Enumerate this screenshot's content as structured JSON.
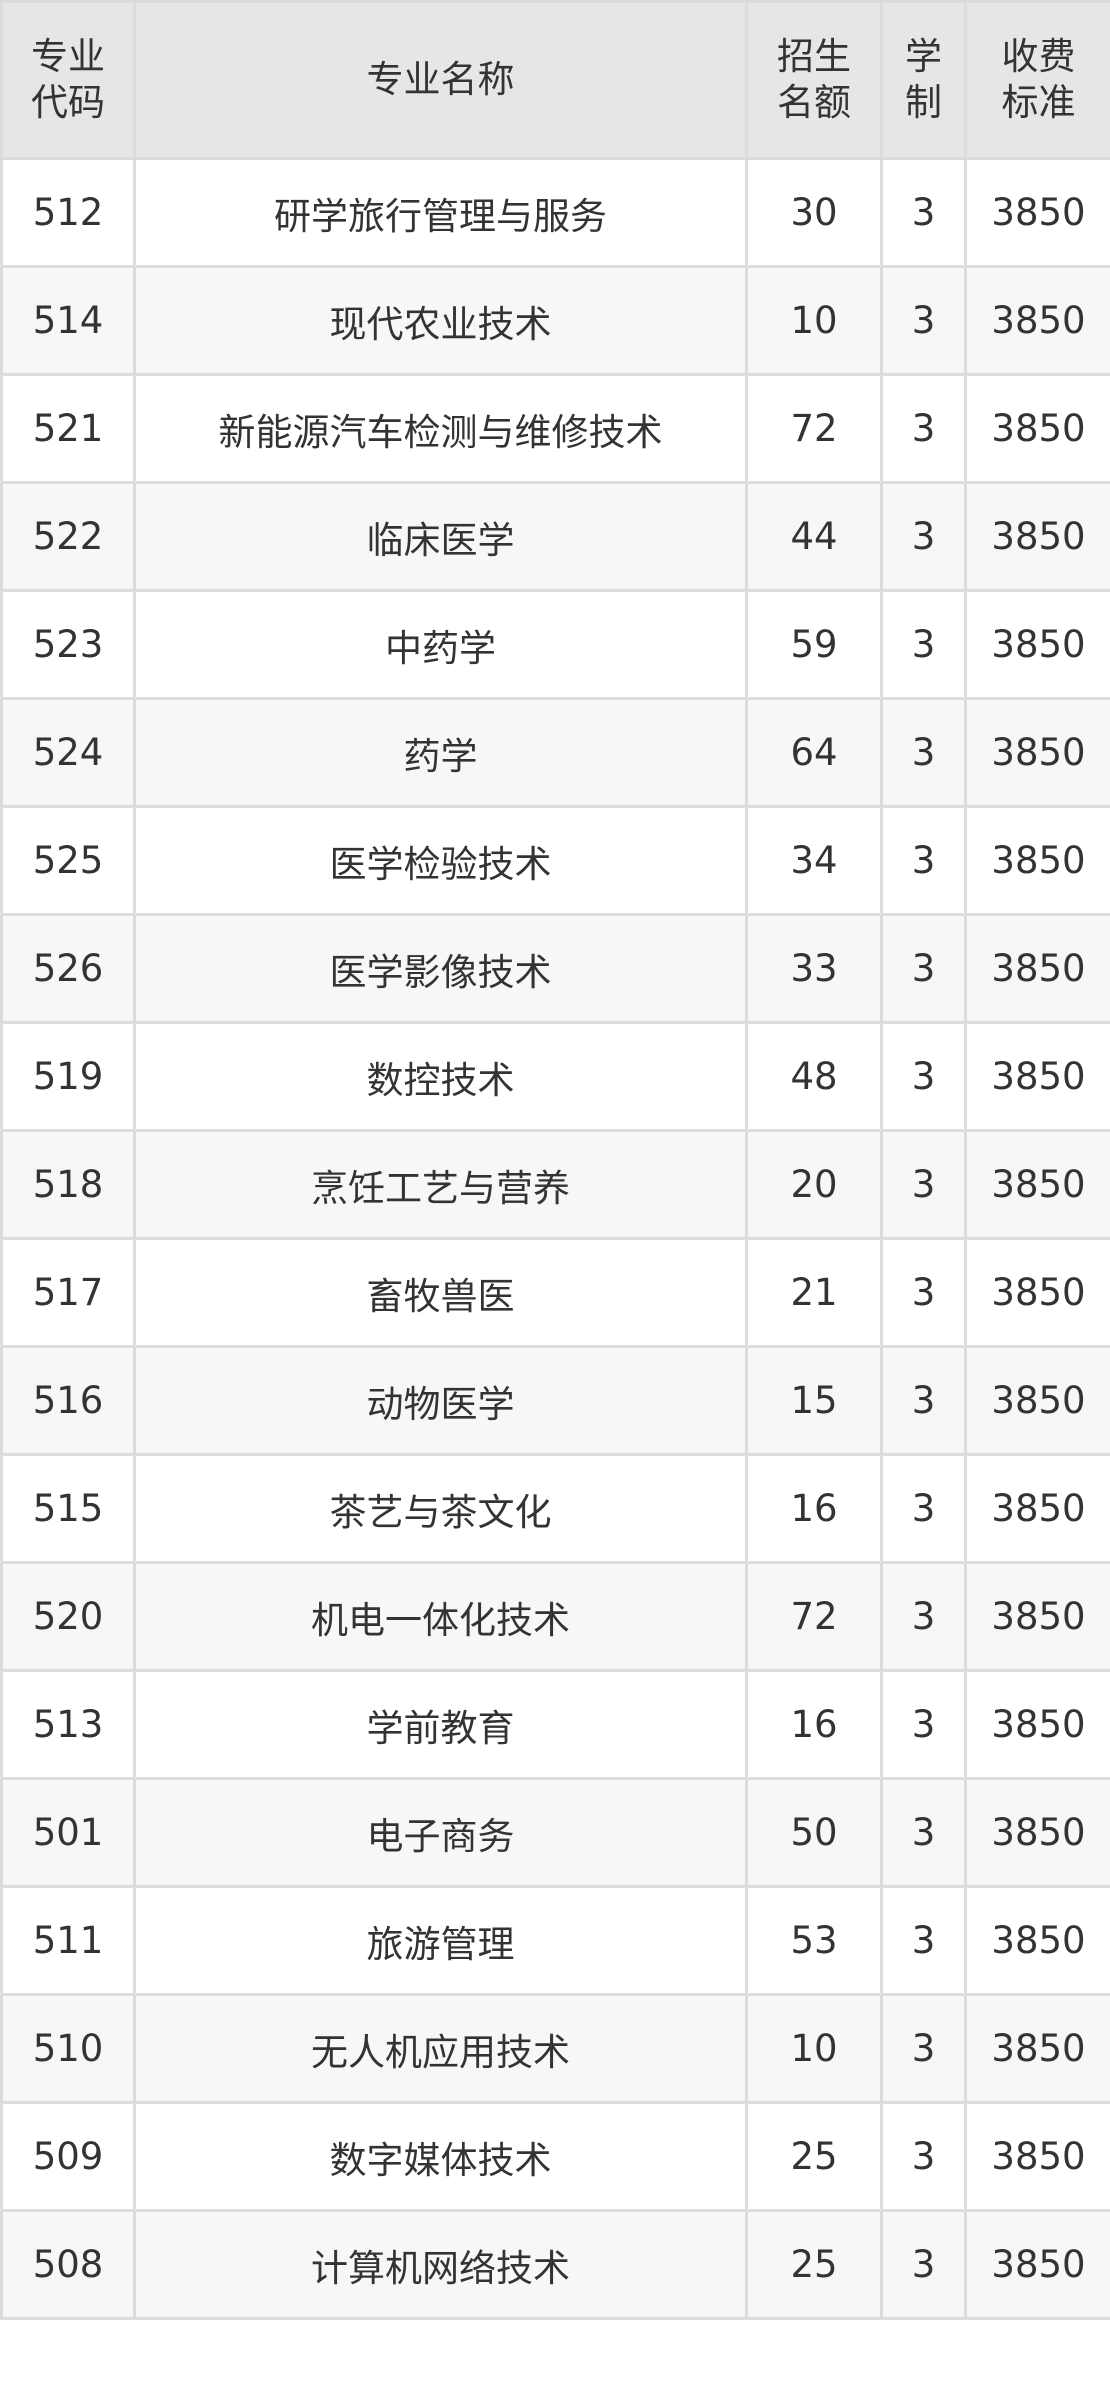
{
  "headers": [
    "专业\n代码",
    "专业名称",
    "招生\n名额",
    "学\n制",
    "收费\n标准"
  ],
  "header_lines": [
    [
      "专业",
      "代码"
    ],
    [
      "专业名称"
    ],
    [
      "招生",
      "名额"
    ],
    [
      "学",
      "制"
    ],
    [
      "收费",
      "标准"
    ]
  ],
  "rows": [
    [
      "512",
      "研学旅行管理与服务",
      "30",
      "3",
      "3850"
    ],
    [
      "514",
      "现代农业技术",
      "10",
      "3",
      "3850"
    ],
    [
      "521",
      "新能源汽车检测与维修技术",
      "72",
      "3",
      "3850"
    ],
    [
      "522",
      "临床医学",
      "44",
      "3",
      "3850"
    ],
    [
      "523",
      "中药学",
      "59",
      "3",
      "3850"
    ],
    [
      "524",
      "药学",
      "64",
      "3",
      "3850"
    ],
    [
      "525",
      "医学检验技术",
      "34",
      "3",
      "3850"
    ],
    [
      "526",
      "医学影像技术",
      "33",
      "3",
      "3850"
    ],
    [
      "519",
      "数控技术",
      "48",
      "3",
      "3850"
    ],
    [
      "518",
      "烹饪工艺与营养",
      "20",
      "3",
      "3850"
    ],
    [
      "517",
      "畜牧兽医",
      "21",
      "3",
      "3850"
    ],
    [
      "516",
      "动物医学",
      "15",
      "3",
      "3850"
    ],
    [
      "515",
      "茶艺与茶文化",
      "16",
      "3",
      "3850"
    ],
    [
      "520",
      "机电一体化技术",
      "72",
      "3",
      "3850"
    ],
    [
      "513",
      "学前教育",
      "16",
      "3",
      "3850"
    ],
    [
      "501",
      "电子商务",
      "50",
      "3",
      "3850"
    ],
    [
      "511",
      "旅游管理",
      "53",
      "3",
      "3850"
    ],
    [
      "510",
      "无人机应用技术",
      "10",
      "3",
      "3850"
    ],
    [
      "509",
      "数字媒体技术",
      "25",
      "3",
      "3850"
    ],
    [
      "508",
      "计算机网络技术",
      "25",
      "3",
      "3850"
    ]
  ]
}
